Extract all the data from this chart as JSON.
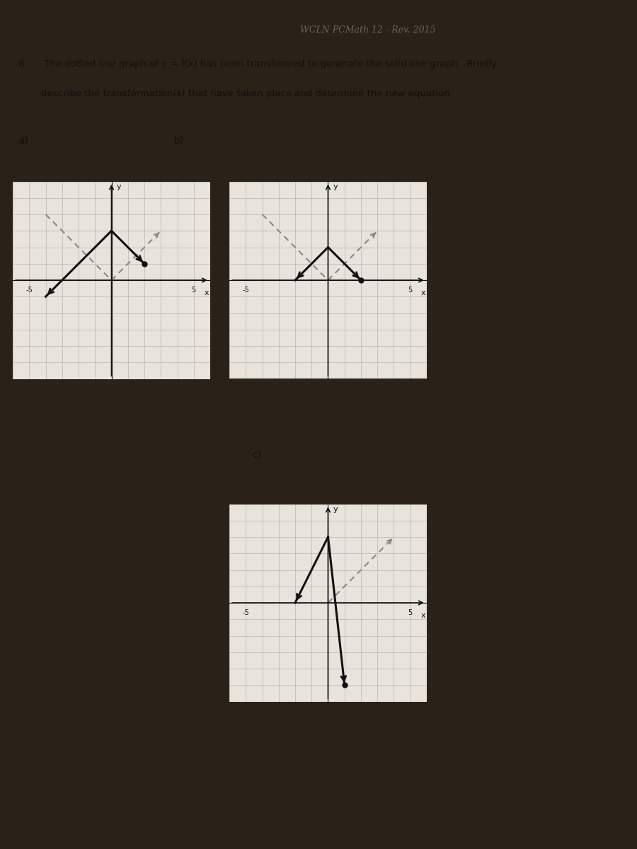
{
  "title": "WCLN PCMath 12 - Rev. 2015",
  "question_num": "6.",
  "question_text": " The dotted line graph of y = f(x) has been transformed to generate the solid line graph.  Briefly",
  "question_text2": "describe the transformation(s) that have taken place and determine the new equation.",
  "bg_dark": "#2a2118",
  "bg_paper": "#f0ece4",
  "grid_color": "#aaaaaa",
  "axis_color": "#111111",
  "dotted_color": "#888888",
  "solid_color": "#111111",
  "graph_a": {
    "xlim": [
      -6,
      6
    ],
    "ylim": [
      -6,
      6
    ],
    "dotted_segs": [
      [
        [
          -4,
          4
        ],
        [
          0,
          0
        ]
      ],
      [
        [
          0,
          0
        ],
        [
          3,
          3
        ]
      ]
    ],
    "dotted_arrows": [
      [
        3,
        3
      ]
    ],
    "solid_segs": [
      [
        [
          -4,
          -1
        ],
        [
          0,
          3
        ]
      ],
      [
        [
          0,
          3
        ],
        [
          2,
          1
        ]
      ]
    ],
    "solid_arrows": [
      [
        -4,
        -1
      ],
      [
        2,
        1
      ]
    ],
    "dot_point": [
      2,
      1
    ],
    "y_tick_pos": 5,
    "x_neg_tick": -5
  },
  "graph_b": {
    "xlim": [
      -6,
      6
    ],
    "ylim": [
      -6,
      6
    ],
    "dotted_segs": [
      [
        [
          -4,
          4
        ],
        [
          0,
          0
        ]
      ],
      [
        [
          0,
          0
        ],
        [
          3,
          3
        ]
      ]
    ],
    "dotted_arrows": [
      [
        3,
        3
      ]
    ],
    "solid_segs": [
      [
        [
          -2,
          0
        ],
        [
          0,
          2
        ]
      ],
      [
        [
          0,
          2
        ],
        [
          2,
          0
        ]
      ]
    ],
    "solid_arrows": [
      [
        -2,
        0
      ],
      [
        2,
        0
      ]
    ],
    "dot_point": [
      2,
      0
    ],
    "y_tick_pos": 5,
    "x_neg_tick": -5
  },
  "graph_c": {
    "xlim": [
      -6,
      6
    ],
    "ylim": [
      -6,
      6
    ],
    "dotted_segs": [
      [
        [
          0,
          0
        ],
        [
          4,
          4
        ]
      ]
    ],
    "dotted_arrows": [
      [
        4,
        4
      ]
    ],
    "solid_segs": [
      [
        [
          -2,
          0
        ],
        [
          0,
          4
        ]
      ],
      [
        [
          0,
          4
        ],
        [
          1,
          -5
        ]
      ]
    ],
    "solid_arrows": [
      [
        -2,
        0
      ],
      [
        1,
        -5
      ]
    ],
    "dot_point": [
      1,
      -5
    ],
    "y_tick_pos": 5,
    "x_neg_tick": -5
  }
}
